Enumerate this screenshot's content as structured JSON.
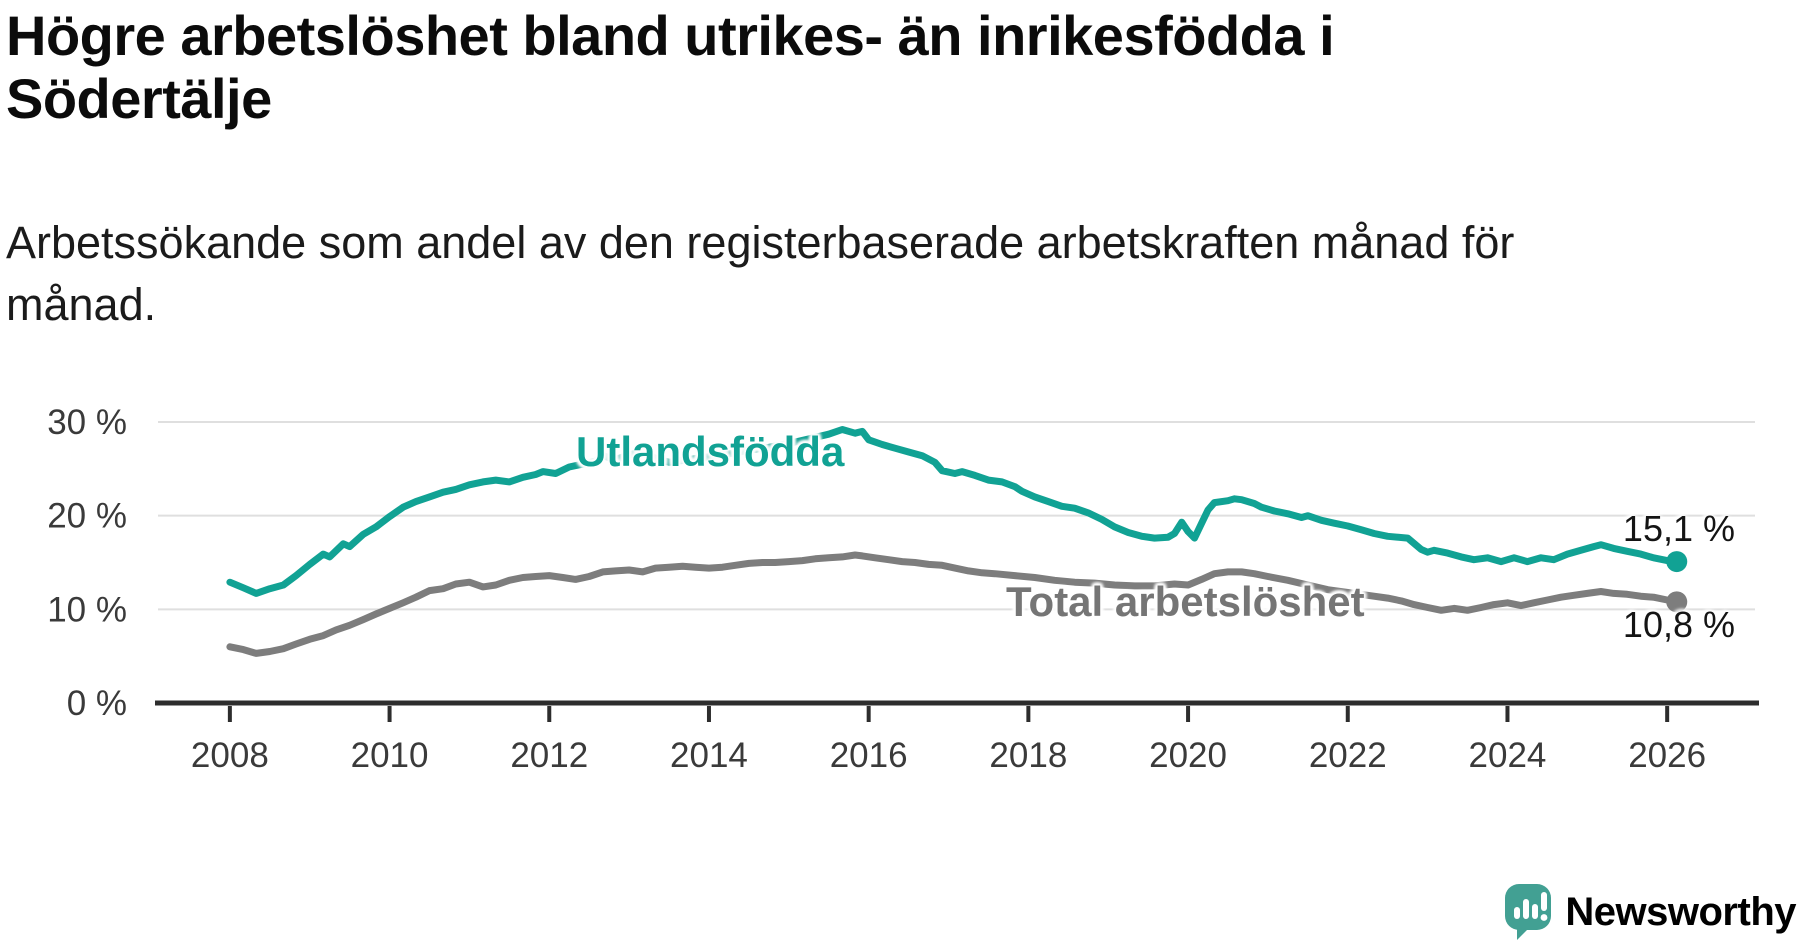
{
  "header": {
    "title": "Högre arbetslöshet bland utrikes- än inrikesfödda i Södertälje",
    "subtitle": "Arbetssökande som andel av den registerbaserade arbetskraften månad för månad."
  },
  "chart_data": {
    "type": "line",
    "title": "Högre arbetslöshet bland utrikes- än inrikesfödda i Södertälje",
    "subtitle": "Arbetssökande som andel av den registerbaserade arbetskraften månad för månad.",
    "xlabel": "",
    "ylabel": "",
    "unit": "%",
    "grid": "horizontal",
    "x_axis": {
      "range": [
        2007.1,
        2027.1
      ],
      "ticks": [
        2008,
        2010,
        2012,
        2014,
        2016,
        2018,
        2020,
        2022,
        2024,
        2026
      ]
    },
    "y_axis": {
      "range": [
        0,
        32
      ],
      "ticks": [
        {
          "value": 0,
          "label": "0 %"
        },
        {
          "value": 10,
          "label": "10 %"
        },
        {
          "value": 20,
          "label": "20 %"
        },
        {
          "value": 30,
          "label": "30 %"
        }
      ]
    },
    "series": [
      {
        "name": "Utlandsfödda",
        "color": "#11a294",
        "end_label": "15,1 %",
        "end_value": 15.1,
        "points": [
          [
            2008.0,
            12.9
          ],
          [
            2008.17,
            12.3
          ],
          [
            2008.33,
            11.7
          ],
          [
            2008.5,
            12.2
          ],
          [
            2008.67,
            12.6
          ],
          [
            2008.83,
            13.6
          ],
          [
            2009.0,
            14.8
          ],
          [
            2009.17,
            15.9
          ],
          [
            2009.25,
            15.6
          ],
          [
            2009.42,
            17.0
          ],
          [
            2009.5,
            16.7
          ],
          [
            2009.67,
            18.0
          ],
          [
            2009.83,
            18.8
          ],
          [
            2010.0,
            19.9
          ],
          [
            2010.17,
            20.9
          ],
          [
            2010.33,
            21.5
          ],
          [
            2010.5,
            22.0
          ],
          [
            2010.67,
            22.5
          ],
          [
            2010.83,
            22.8
          ],
          [
            2011.0,
            23.3
          ],
          [
            2011.17,
            23.6
          ],
          [
            2011.33,
            23.8
          ],
          [
            2011.5,
            23.6
          ],
          [
            2011.67,
            24.1
          ],
          [
            2011.83,
            24.4
          ],
          [
            2011.92,
            24.7
          ],
          [
            2012.08,
            24.5
          ],
          [
            2012.25,
            25.2
          ],
          [
            2012.42,
            25.5
          ],
          [
            2012.58,
            25.8
          ],
          [
            2012.67,
            26.4
          ],
          [
            2012.83,
            26.0
          ],
          [
            2013.0,
            26.5
          ],
          [
            2013.17,
            26.8
          ],
          [
            2013.33,
            26.1
          ],
          [
            2013.5,
            25.7
          ],
          [
            2013.75,
            26.0
          ],
          [
            2014.0,
            26.3
          ],
          [
            2014.25,
            26.6
          ],
          [
            2014.5,
            27.0
          ],
          [
            2014.75,
            27.3
          ],
          [
            2015.0,
            27.7
          ],
          [
            2015.25,
            28.2
          ],
          [
            2015.5,
            28.7
          ],
          [
            2015.67,
            29.2
          ],
          [
            2015.83,
            28.8
          ],
          [
            2015.92,
            29.0
          ],
          [
            2016.0,
            28.1
          ],
          [
            2016.17,
            27.6
          ],
          [
            2016.33,
            27.2
          ],
          [
            2016.5,
            26.8
          ],
          [
            2016.67,
            26.4
          ],
          [
            2016.83,
            25.7
          ],
          [
            2016.92,
            24.8
          ],
          [
            2017.08,
            24.5
          ],
          [
            2017.17,
            24.7
          ],
          [
            2017.33,
            24.3
          ],
          [
            2017.5,
            23.8
          ],
          [
            2017.67,
            23.6
          ],
          [
            2017.83,
            23.1
          ],
          [
            2017.92,
            22.6
          ],
          [
            2018.08,
            22.0
          ],
          [
            2018.25,
            21.5
          ],
          [
            2018.42,
            21.0
          ],
          [
            2018.58,
            20.8
          ],
          [
            2018.75,
            20.3
          ],
          [
            2018.92,
            19.6
          ],
          [
            2019.08,
            18.8
          ],
          [
            2019.25,
            18.2
          ],
          [
            2019.42,
            17.8
          ],
          [
            2019.58,
            17.6
          ],
          [
            2019.75,
            17.7
          ],
          [
            2019.83,
            18.1
          ],
          [
            2019.92,
            19.3
          ],
          [
            2020.0,
            18.3
          ],
          [
            2020.08,
            17.6
          ],
          [
            2020.17,
            19.2
          ],
          [
            2020.25,
            20.6
          ],
          [
            2020.33,
            21.4
          ],
          [
            2020.5,
            21.6
          ],
          [
            2020.58,
            21.8
          ],
          [
            2020.67,
            21.7
          ],
          [
            2020.83,
            21.3
          ],
          [
            2020.92,
            20.9
          ],
          [
            2021.08,
            20.5
          ],
          [
            2021.25,
            20.2
          ],
          [
            2021.42,
            19.8
          ],
          [
            2021.5,
            20.0
          ],
          [
            2021.67,
            19.5
          ],
          [
            2021.83,
            19.2
          ],
          [
            2022.0,
            18.9
          ],
          [
            2022.17,
            18.5
          ],
          [
            2022.33,
            18.1
          ],
          [
            2022.5,
            17.8
          ],
          [
            2022.75,
            17.6
          ],
          [
            2022.92,
            16.4
          ],
          [
            2023.0,
            16.1
          ],
          [
            2023.08,
            16.3
          ],
          [
            2023.25,
            16.0
          ],
          [
            2023.42,
            15.6
          ],
          [
            2023.58,
            15.3
          ],
          [
            2023.75,
            15.5
          ],
          [
            2023.92,
            15.1
          ],
          [
            2024.08,
            15.5
          ],
          [
            2024.25,
            15.1
          ],
          [
            2024.42,
            15.5
          ],
          [
            2024.58,
            15.3
          ],
          [
            2024.75,
            15.9
          ],
          [
            2024.92,
            16.3
          ],
          [
            2025.08,
            16.7
          ],
          [
            2025.17,
            16.9
          ],
          [
            2025.33,
            16.5
          ],
          [
            2025.5,
            16.2
          ],
          [
            2025.67,
            15.9
          ],
          [
            2025.83,
            15.5
          ],
          [
            2026.0,
            15.2
          ],
          [
            2026.12,
            15.1
          ]
        ]
      },
      {
        "name": "Total arbetslöshet",
        "color": "#7d7d7d",
        "end_label": "10,8 %",
        "end_value": 10.8,
        "points": [
          [
            2008.0,
            6.0
          ],
          [
            2008.17,
            5.7
          ],
          [
            2008.33,
            5.3
          ],
          [
            2008.5,
            5.5
          ],
          [
            2008.67,
            5.8
          ],
          [
            2008.83,
            6.3
          ],
          [
            2009.0,
            6.8
          ],
          [
            2009.17,
            7.2
          ],
          [
            2009.33,
            7.8
          ],
          [
            2009.5,
            8.3
          ],
          [
            2009.67,
            8.9
          ],
          [
            2009.83,
            9.5
          ],
          [
            2010.0,
            10.1
          ],
          [
            2010.17,
            10.7
          ],
          [
            2010.33,
            11.3
          ],
          [
            2010.5,
            12.0
          ],
          [
            2010.67,
            12.2
          ],
          [
            2010.83,
            12.7
          ],
          [
            2011.0,
            12.9
          ],
          [
            2011.17,
            12.4
          ],
          [
            2011.33,
            12.6
          ],
          [
            2011.5,
            13.1
          ],
          [
            2011.67,
            13.4
          ],
          [
            2011.83,
            13.5
          ],
          [
            2012.0,
            13.6
          ],
          [
            2012.17,
            13.4
          ],
          [
            2012.33,
            13.2
          ],
          [
            2012.5,
            13.5
          ],
          [
            2012.67,
            14.0
          ],
          [
            2012.83,
            14.1
          ],
          [
            2013.0,
            14.2
          ],
          [
            2013.17,
            14.0
          ],
          [
            2013.33,
            14.4
          ],
          [
            2013.5,
            14.5
          ],
          [
            2013.67,
            14.6
          ],
          [
            2013.83,
            14.5
          ],
          [
            2014.0,
            14.4
          ],
          [
            2014.17,
            14.5
          ],
          [
            2014.33,
            14.7
          ],
          [
            2014.5,
            14.9
          ],
          [
            2014.67,
            15.0
          ],
          [
            2014.83,
            15.0
          ],
          [
            2015.0,
            15.1
          ],
          [
            2015.17,
            15.2
          ],
          [
            2015.33,
            15.4
          ],
          [
            2015.5,
            15.5
          ],
          [
            2015.67,
            15.6
          ],
          [
            2015.83,
            15.8
          ],
          [
            2015.92,
            15.7
          ],
          [
            2016.08,
            15.5
          ],
          [
            2016.25,
            15.3
          ],
          [
            2016.42,
            15.1
          ],
          [
            2016.58,
            15.0
          ],
          [
            2016.75,
            14.8
          ],
          [
            2016.92,
            14.7
          ],
          [
            2017.08,
            14.4
          ],
          [
            2017.25,
            14.1
          ],
          [
            2017.42,
            13.9
          ],
          [
            2017.58,
            13.8
          ],
          [
            2017.83,
            13.6
          ],
          [
            2018.08,
            13.4
          ],
          [
            2018.33,
            13.1
          ],
          [
            2018.58,
            12.9
          ],
          [
            2018.83,
            12.8
          ],
          [
            2019.08,
            12.6
          ],
          [
            2019.33,
            12.5
          ],
          [
            2019.58,
            12.5
          ],
          [
            2019.83,
            12.7
          ],
          [
            2020.0,
            12.6
          ],
          [
            2020.17,
            13.2
          ],
          [
            2020.33,
            13.8
          ],
          [
            2020.5,
            14.0
          ],
          [
            2020.67,
            14.0
          ],
          [
            2020.83,
            13.8
          ],
          [
            2021.0,
            13.5
          ],
          [
            2021.25,
            13.1
          ],
          [
            2021.5,
            12.6
          ],
          [
            2021.75,
            12.1
          ],
          [
            2022.0,
            11.8
          ],
          [
            2022.25,
            11.5
          ],
          [
            2022.5,
            11.2
          ],
          [
            2022.67,
            10.9
          ],
          [
            2022.83,
            10.5
          ],
          [
            2023.0,
            10.2
          ],
          [
            2023.17,
            9.9
          ],
          [
            2023.33,
            10.1
          ],
          [
            2023.5,
            9.9
          ],
          [
            2023.67,
            10.2
          ],
          [
            2023.83,
            10.5
          ],
          [
            2024.0,
            10.7
          ],
          [
            2024.17,
            10.4
          ],
          [
            2024.33,
            10.7
          ],
          [
            2024.5,
            11.0
          ],
          [
            2024.67,
            11.3
          ],
          [
            2024.83,
            11.5
          ],
          [
            2025.0,
            11.7
          ],
          [
            2025.17,
            11.9
          ],
          [
            2025.33,
            11.7
          ],
          [
            2025.5,
            11.6
          ],
          [
            2025.67,
            11.4
          ],
          [
            2025.83,
            11.3
          ],
          [
            2026.0,
            11.0
          ],
          [
            2026.12,
            10.8
          ]
        ]
      }
    ],
    "colors": {
      "gridline": "#dfdfdf",
      "axis": "#2d2d2d",
      "tick_label": "#3a3a3a",
      "end_label_text": "#141414"
    },
    "legend_position": "inline-labels"
  },
  "branding": {
    "logo_text": "Newsworthy",
    "logo_color": "#42a093"
  }
}
